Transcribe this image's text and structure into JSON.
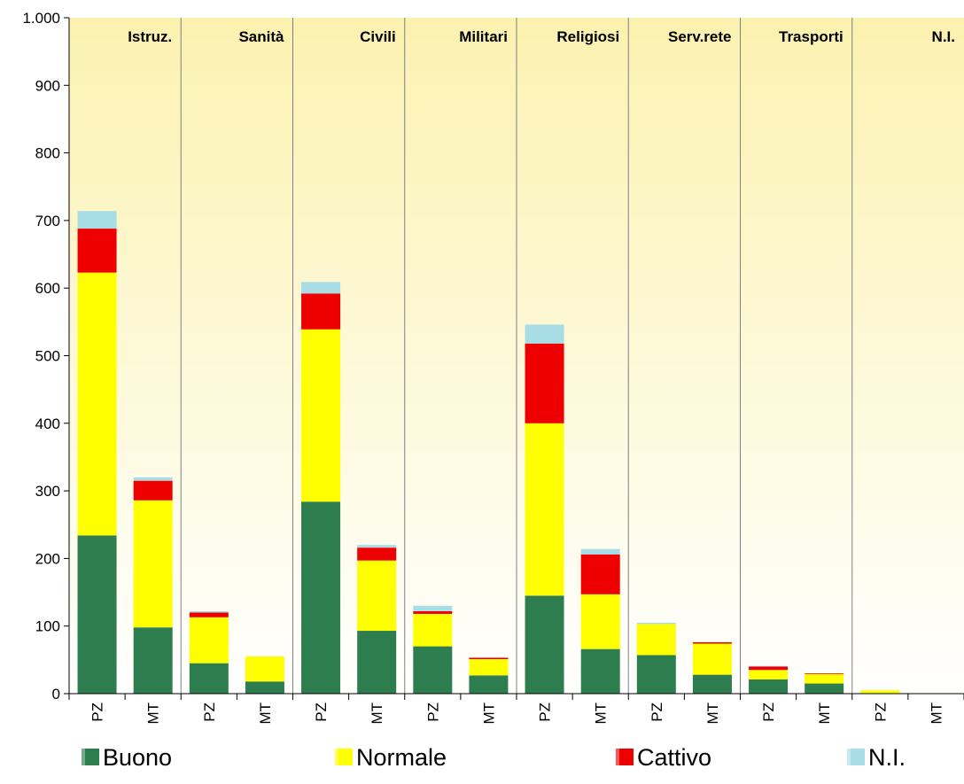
{
  "chart_data": {
    "type": "bar",
    "stacked": true,
    "title": "",
    "xlabel": "",
    "ylabel": "",
    "ylim": [
      0,
      1000
    ],
    "yticks": [
      0,
      100,
      200,
      300,
      400,
      500,
      600,
      700,
      800,
      900,
      1000
    ],
    "ytick_labels": [
      "0",
      "100",
      "200",
      "300",
      "400",
      "500",
      "600",
      "700",
      "800",
      "900",
      "1.000"
    ],
    "groups": [
      "Istruz.",
      "Sanità",
      "Civili",
      "Militari",
      "Religiosi",
      "Serv.rete",
      "Trasporti",
      "N.I."
    ],
    "categories": [
      "PZ",
      "MT",
      "PZ",
      "MT",
      "PZ",
      "MT",
      "PZ",
      "MT",
      "PZ",
      "MT",
      "PZ",
      "MT",
      "PZ",
      "MT",
      "PZ",
      "MT"
    ],
    "series": [
      {
        "name": "Buono",
        "color": "#2e7d4f",
        "values": [
          234,
          98,
          45,
          18,
          284,
          93,
          70,
          27,
          145,
          66,
          57,
          28,
          21,
          15,
          0,
          0
        ]
      },
      {
        "name": "Normale",
        "color": "#ffff00",
        "values": [
          389,
          188,
          68,
          37,
          255,
          104,
          48,
          24,
          255,
          81,
          46,
          46,
          14,
          14,
          5,
          0
        ]
      },
      {
        "name": "Cattivo",
        "color": "#ee0000",
        "values": [
          65,
          29,
          7,
          0,
          53,
          19,
          4,
          2,
          118,
          59,
          0,
          2,
          5,
          1,
          0,
          0
        ]
      },
      {
        "name": "N.I.",
        "color": "#a9dde6",
        "values": [
          26,
          5,
          2,
          0,
          17,
          4,
          8,
          1,
          28,
          8,
          2,
          0,
          1,
          0,
          0,
          0
        ]
      }
    ],
    "grid": false,
    "legend_position": "bottom",
    "colors": {
      "plot_bg_top": "#fbf2b0",
      "plot_bg_bottom": "#ffffff",
      "axis": "#000000",
      "divider": "#808080"
    }
  }
}
